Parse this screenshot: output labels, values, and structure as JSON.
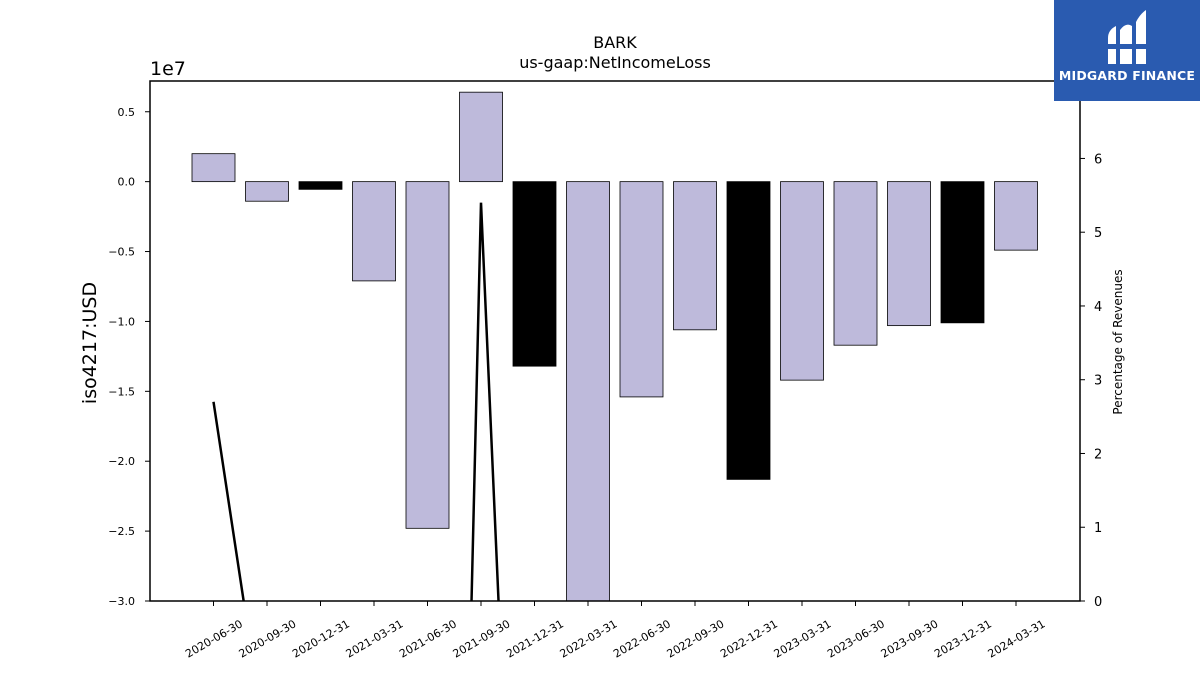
{
  "chart_data": {
    "type": "bar",
    "title": "BARK",
    "subtitle": "us-gaap:NetIncomeLoss",
    "ylabel": "iso4217:USD",
    "y2label": "Percentage of Revenues",
    "offset_label": "1e7",
    "categories": [
      "2020-06-30",
      "2020-09-30",
      "2020-12-31",
      "2021-03-31",
      "2021-06-30",
      "2021-09-30",
      "2021-12-31",
      "2022-03-31",
      "2022-06-30",
      "2022-09-30",
      "2022-12-31",
      "2023-03-31",
      "2023-06-30",
      "2023-09-30",
      "2023-12-31",
      "2024-03-31"
    ],
    "series": [
      {
        "values": [
          2000000,
          -1400000,
          -550000,
          -7100000,
          -24800000,
          6400000,
          -13200000,
          -30500000,
          -15400000,
          -10600000,
          -21300000,
          -14200000,
          -11700000,
          -10300000,
          -10100000,
          -4900000
        ],
        "highlight": [
          false,
          false,
          true,
          false,
          false,
          false,
          true,
          false,
          false,
          false,
          true,
          false,
          false,
          false,
          true,
          false
        ]
      }
    ],
    "line_series": {
      "axis": "right",
      "points": [
        {
          "category": "2020-06-30",
          "value": 2.7
        },
        {
          "category": "2020-09-30",
          "value": -0.3
        },
        {
          "category": "2021-09-30",
          "value": -0.3
        },
        {
          "category": "2021-09-30",
          "value": 5.4
        },
        {
          "category": "2021-12-31",
          "value": -0.3
        }
      ]
    },
    "ylim": [
      -30000000,
      7200000
    ],
    "y2lim": [
      0,
      7.05
    ],
    "yticks": [
      -3.0,
      -2.5,
      -2.0,
      -1.5,
      -1.0,
      -0.5,
      0.0,
      0.5
    ],
    "y2ticks": [
      0,
      1,
      2,
      3,
      4,
      5,
      6
    ],
    "colors": {
      "bar": "#bebadb",
      "highlight": "#000000",
      "edge": "#000000",
      "line": "#000000"
    }
  },
  "logo": {
    "text": "MIDGARD FINANCE",
    "bg": "#2a5bb0"
  }
}
